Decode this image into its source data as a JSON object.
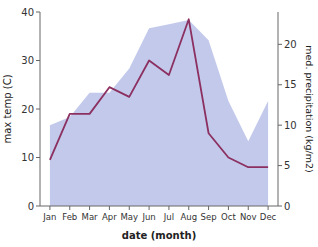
{
  "chart_data": {
    "type": "line",
    "categories": [
      "Jan",
      "Feb",
      "Mar",
      "Apr",
      "May",
      "Jun",
      "Jul",
      "Aug",
      "Sep",
      "Oct",
      "Nov",
      "Dec"
    ],
    "series": [
      {
        "type": "area",
        "axis": "y2",
        "color": "#b8c0e8",
        "values": [
          10.0,
          11.0,
          14.0,
          14.0,
          17.0,
          22.0,
          22.5,
          23.0,
          20.5,
          13.0,
          8.0,
          13.0
        ]
      },
      {
        "type": "line",
        "color": "#8B3060",
        "values": [
          9.5,
          19.0,
          19.0,
          24.5,
          22.5,
          30.0,
          27.0,
          38.5,
          15.0,
          10.0,
          8.0,
          8.0
        ]
      }
    ],
    "xlabel": "date (month)",
    "ylabel": "max temp (C)",
    "y2label": "med. precipitation (kg/m2)",
    "ylim": [
      0,
      40
    ],
    "yticks": [
      0,
      10,
      20,
      30,
      40
    ],
    "y2lim": [
      0,
      24
    ],
    "y2ticks": [
      0,
      5,
      10,
      15,
      20
    ],
    "grid": false
  }
}
